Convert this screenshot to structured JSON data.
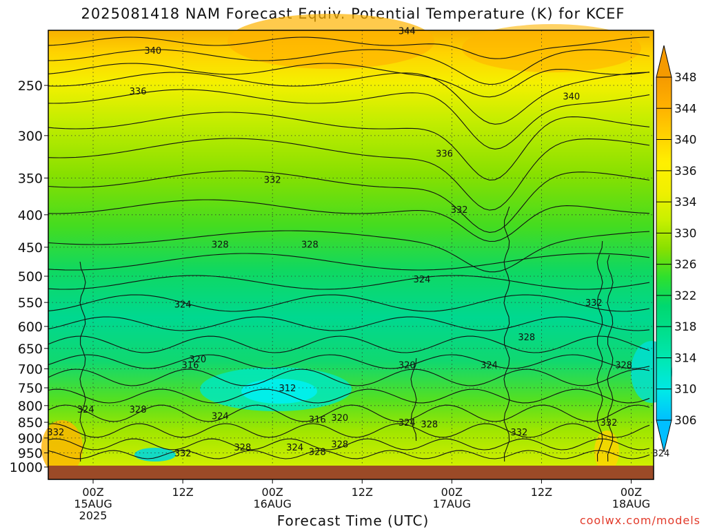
{
  "colors": {
    "ground": "#9b4a27",
    "contour": "#111111",
    "credit": "#e23a2a",
    "scale": [
      "#00bfff",
      "#00e8e8",
      "#00e8b8",
      "#00e090",
      "#00d870",
      "#2ee02e",
      "#88e000",
      "#c8f000",
      "#f0f000",
      "#fff000",
      "#ffd000",
      "#ffb000",
      "#f59a00"
    ]
  },
  "chart_data": {
    "type": "heatmap",
    "title": "2025081418 NAM Forecast Equiv. Potential Temperature (K) for KCEF",
    "xlabel": "Forecast Time (UTC)",
    "ylabel": "",
    "credit": "coolwx.com/models",
    "y_axis": {
      "quantity": "pressure (hPa)",
      "range": [
        1000,
        200
      ],
      "scale": "log",
      "ticks": [
        "250",
        "300",
        "350",
        "400",
        "450",
        "500",
        "550",
        "600",
        "650",
        "700",
        "750",
        "800",
        "850",
        "900",
        "950",
        "1000"
      ]
    },
    "x_axis": {
      "range": [
        "2025-08-14 18Z",
        "2025-08-18 03Z"
      ],
      "ticks": [
        {
          "time": "2025-08-15 00Z",
          "lines": [
            "00Z",
            "15AUG",
            "2025"
          ]
        },
        {
          "time": "2025-08-15 12Z",
          "lines": [
            "12Z"
          ]
        },
        {
          "time": "2025-08-16 00Z",
          "lines": [
            "00Z",
            "16AUG"
          ]
        },
        {
          "time": "2025-08-16 12Z",
          "lines": [
            "12Z"
          ]
        },
        {
          "time": "2025-08-17 00Z",
          "lines": [
            "00Z",
            "17AUG"
          ]
        },
        {
          "time": "2025-08-17 12Z",
          "lines": [
            "12Z"
          ]
        },
        {
          "time": "2025-08-18 00Z",
          "lines": [
            "00Z",
            "18AUG"
          ]
        }
      ]
    },
    "colorbar": {
      "labels": [
        "348",
        "344",
        "340",
        "336",
        "334",
        "330",
        "326",
        "322",
        "318",
        "314",
        "310",
        "306"
      ],
      "bounds": [
        306,
        348
      ]
    },
    "contour_levels": [
      336,
      332,
      328,
      324
    ],
    "contour_labels": [
      {
        "text": "344",
        "time": "2025-08-16 18Z",
        "p": 205
      },
      {
        "text": "340",
        "time": "2025-08-15 08Z",
        "p": 220
      },
      {
        "text": "340",
        "time": "2025-08-17 16Z",
        "p": 260
      },
      {
        "text": "336",
        "time": "2025-08-15 06Z",
        "p": 255
      },
      {
        "text": "336",
        "time": "2025-08-16 23Z",
        "p": 320
      },
      {
        "text": "332",
        "time": "2025-08-16 00Z",
        "p": 352
      },
      {
        "text": "332",
        "time": "2025-08-17 01Z",
        "p": 392
      },
      {
        "text": "328",
        "time": "2025-08-15 17Z",
        "p": 445
      },
      {
        "text": "328",
        "time": "2025-08-16 05Z",
        "p": 445
      },
      {
        "text": "324",
        "time": "2025-08-16 20Z",
        "p": 505
      },
      {
        "text": "324",
        "time": "2025-08-15 12Z",
        "p": 553
      },
      {
        "text": "332",
        "time": "2025-08-17 19Z",
        "p": 550
      },
      {
        "text": "328",
        "time": "2025-08-17 10Z",
        "p": 623
      },
      {
        "text": "320",
        "time": "2025-08-15 14Z",
        "p": 675
      },
      {
        "text": "316",
        "time": "2025-08-15 13Z",
        "p": 690
      },
      {
        "text": "320",
        "time": "2025-08-16 18Z",
        "p": 690
      },
      {
        "text": "324",
        "time": "2025-08-17 05Z",
        "p": 690
      },
      {
        "text": "328",
        "time": "2025-08-17 23Z",
        "p": 690
      },
      {
        "text": "312",
        "time": "2025-08-16 02Z",
        "p": 750
      },
      {
        "text": "324",
        "time": "2025-08-14 23Z",
        "p": 810
      },
      {
        "text": "328",
        "time": "2025-08-15 06Z",
        "p": 810
      },
      {
        "text": "324",
        "time": "2025-08-15 17Z",
        "p": 830
      },
      {
        "text": "316",
        "time": "2025-08-16 06Z",
        "p": 840
      },
      {
        "text": "320",
        "time": "2025-08-16 09Z",
        "p": 835
      },
      {
        "text": "324",
        "time": "2025-08-16 18Z",
        "p": 850
      },
      {
        "text": "328",
        "time": "2025-08-16 21Z",
        "p": 855
      },
      {
        "text": "332",
        "time": "2025-08-14 19Z",
        "p": 880
      },
      {
        "text": "332",
        "time": "2025-08-17 09Z",
        "p": 880
      },
      {
        "text": "332",
        "time": "2025-08-17 21Z",
        "p": 850
      },
      {
        "text": "328",
        "time": "2025-08-15 20Z",
        "p": 930
      },
      {
        "text": "324",
        "time": "2025-08-16 03Z",
        "p": 930
      },
      {
        "text": "328",
        "time": "2025-08-16 06Z",
        "p": 945
      },
      {
        "text": "328",
        "time": "2025-08-16 09Z",
        "p": 920
      },
      {
        "text": "332",
        "time": "2025-08-15 12Z",
        "p": 950
      },
      {
        "text": "324",
        "time": "2025-08-18 04Z",
        "p": 950
      }
    ]
  }
}
